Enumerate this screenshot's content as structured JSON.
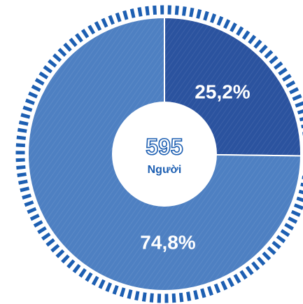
{
  "chart_data": {
    "type": "pie",
    "donut": true,
    "values": [
      25.2,
      74.8
    ],
    "value_labels": [
      "25,2%",
      "74,8%"
    ],
    "colors": [
      "#2b539f",
      "#4e80c2"
    ],
    "center_value": 595,
    "center_label": "Người"
  }
}
